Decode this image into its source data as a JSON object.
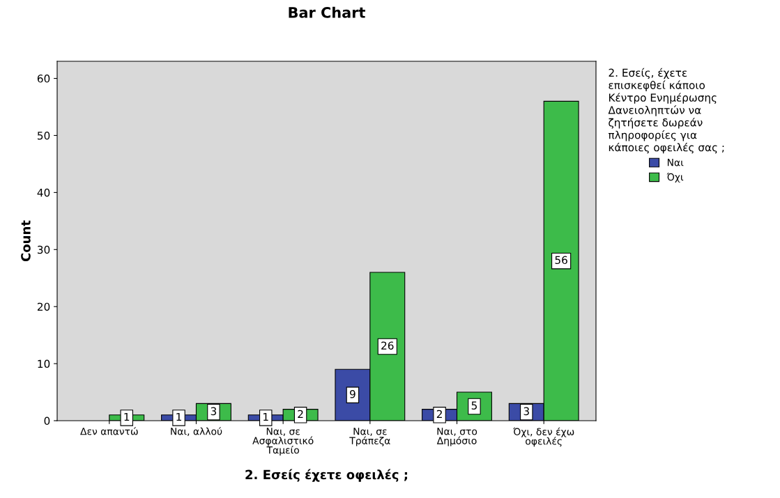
{
  "chart_data": {
    "type": "bar",
    "title": "Bar Chart",
    "xlabel": "2. Εσείς έχετε οφειλές ;",
    "ylabel": "Count",
    "legend_title": "2. Εσείς, έχετε\nεπισκεφθεί κάποιο\nΚέντρο Ενημέρωσης\nΔανειοληπτών να\nζητήσετε δωρεάν\nπληροφορίες για\nκάποιες οφειλές σας ;",
    "categories": [
      "Δεν απαντώ",
      "Ναι, αλλού",
      "Ναι, σε\nΑσφαλιστικό\nΤαμείο",
      "Ναι, σε\nΤράπεζα",
      "Ναι, στο\nΔημόσιο",
      "Όχι, δεν έχω\nοφειλές"
    ],
    "series": [
      {
        "name": "Ναι",
        "color": "#3b4ba6",
        "values": [
          null,
          1,
          1,
          9,
          2,
          3
        ]
      },
      {
        "name": "Όχι",
        "color": "#3dbb4a",
        "values": [
          1,
          3,
          2,
          26,
          5,
          56
        ]
      }
    ],
    "ylim": [
      0,
      63
    ],
    "yticks": [
      0,
      10,
      20,
      30,
      40,
      50,
      60
    ],
    "data_labels": true,
    "legend": "right",
    "grid": false
  }
}
